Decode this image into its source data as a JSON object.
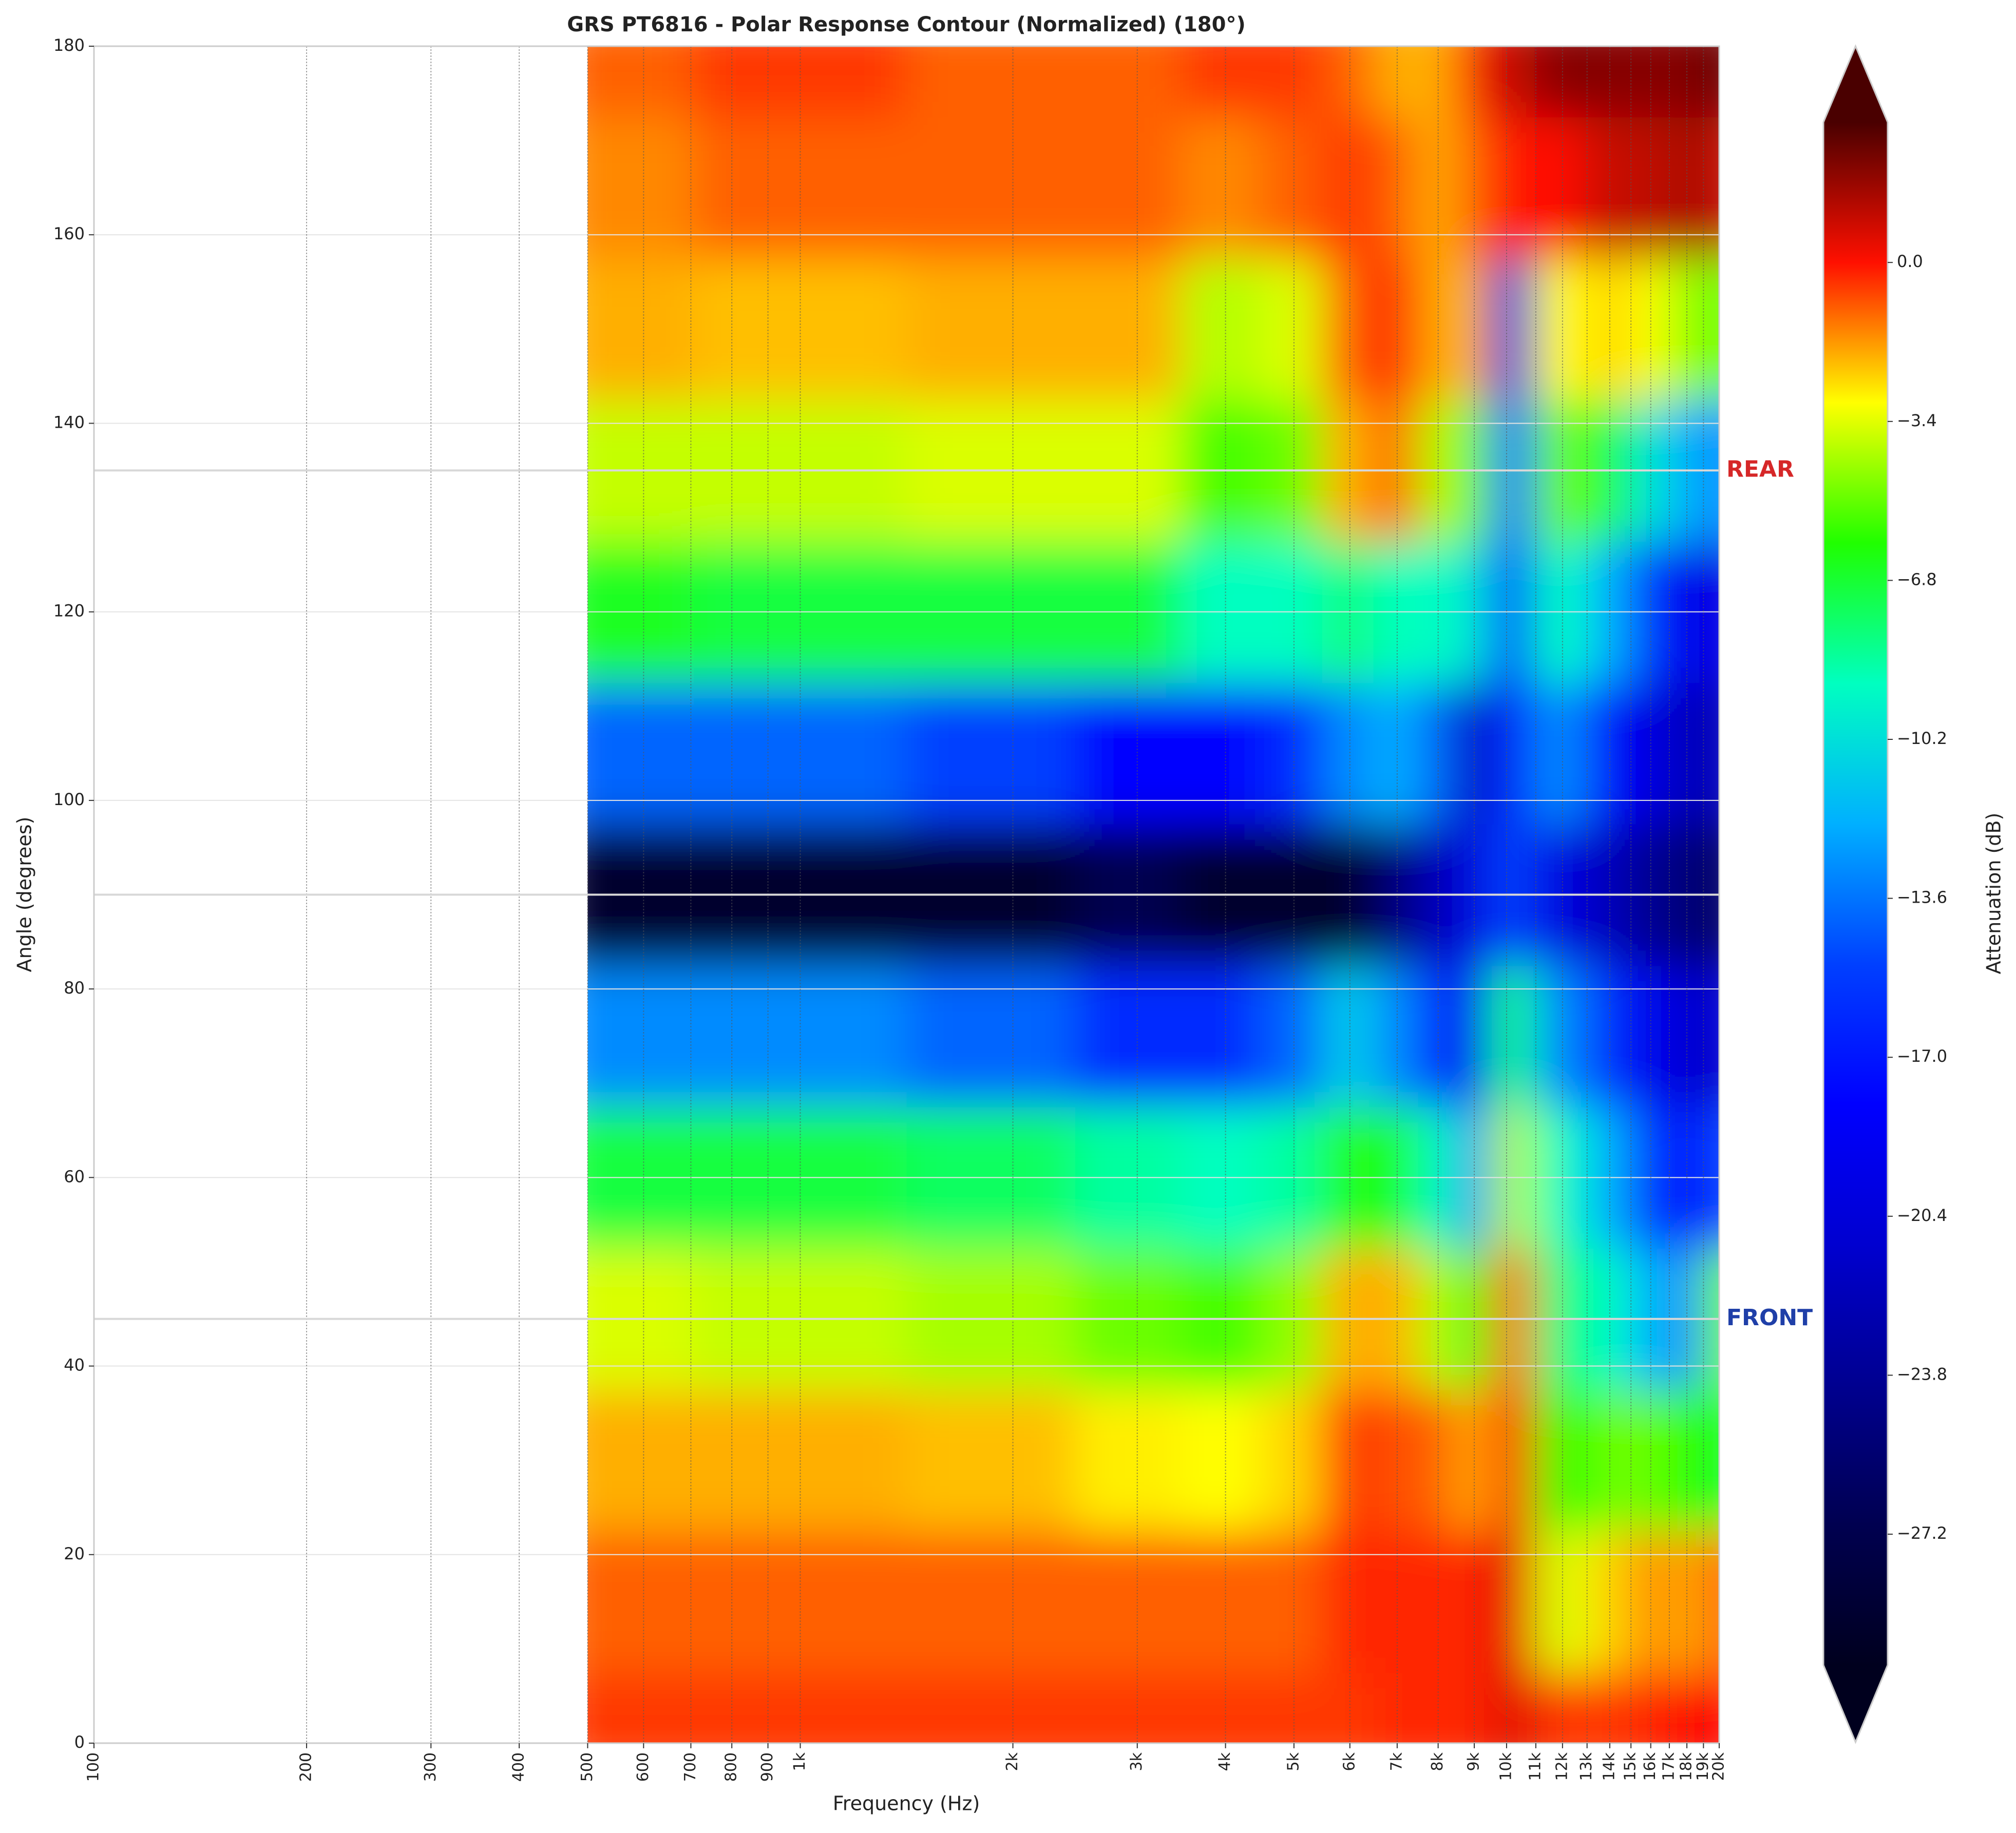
{
  "chart_data": {
    "type": "contour",
    "title": "GRS PT6816 - Polar Response Contour (Normalized) (180°)",
    "x_label": "Frequency (Hz)",
    "y_label": "Angle (degrees)",
    "colorbar_label": "Attenuation (dB)",
    "x_scale": "log",
    "grid": true,
    "x": [
      500,
      1000,
      2000,
      3000,
      4000,
      5000,
      6000,
      7000,
      8000,
      9000,
      10000,
      12000,
      14000,
      16000,
      18000,
      20000
    ],
    "y": [
      0,
      15,
      30,
      45,
      60,
      75,
      90,
      105,
      120,
      135,
      150,
      165,
      180
    ],
    "z": [
      [
        -0.5,
        -0.5,
        -0.5,
        -0.5,
        -0.5,
        -0.5,
        -0.5,
        -0.3,
        -0.3,
        -0.3,
        0.5,
        -0.5,
        -0.5,
        -0.3,
        0,
        0
      ],
      [
        -1,
        -1,
        -1,
        -1,
        -1,
        -1,
        -0.3,
        -0.3,
        -0.3,
        -0.3,
        0.5,
        -3.5,
        -2.5,
        -1.5,
        -2,
        -1
      ],
      [
        -2,
        -2,
        -2.2,
        -2.8,
        -3,
        -2.5,
        -0.5,
        -0.8,
        -1,
        -2,
        0,
        -6,
        -5,
        -5,
        -6,
        -6.5
      ],
      [
        -3.5,
        -3.8,
        -4.2,
        -5,
        -5.5,
        -4.5,
        -2,
        -2,
        -4,
        -6.5,
        -1,
        -8,
        -9,
        -12,
        -13,
        -5
      ],
      [
        -7,
        -7,
        -7.5,
        -8.5,
        -9,
        -8.5,
        -6,
        -6.5,
        -9,
        -13,
        -4,
        -9,
        -12,
        -16,
        -17,
        -15
      ],
      [
        -13,
        -13,
        -14,
        -16,
        -16,
        -14,
        -11,
        -13,
        -16,
        -19,
        -8,
        -13,
        -16,
        -19,
        -21,
        -21
      ],
      [
        -29,
        -29,
        -29,
        -27,
        -29,
        -29,
        -29,
        -25,
        -22,
        -20,
        -15,
        -20,
        -22,
        -24,
        -25,
        -26
      ],
      [
        -14,
        -14,
        -15,
        -18,
        -18,
        -16,
        -13,
        -12,
        -14,
        -22,
        -16,
        -13,
        -18,
        -20,
        -22,
        -22
      ],
      [
        -6.5,
        -7,
        -7,
        -7,
        -9,
        -9,
        -8,
        -9,
        -9,
        -10,
        -15,
        -9,
        -12,
        -16,
        -19,
        -20
      ],
      [
        -3.8,
        -3.8,
        -3.5,
        -3.5,
        -5.5,
        -5,
        -2,
        -1,
        -4,
        -5,
        -14,
        -5,
        -7,
        -10,
        -12,
        -13
      ],
      [
        -2,
        -2.2,
        -2,
        -2,
        -4,
        -3.5,
        -1,
        0,
        -2,
        -2,
        -20,
        -3,
        -2.5,
        -3,
        -4.5,
        -5
      ],
      [
        -1.5,
        -1,
        -1,
        -1,
        -1.5,
        -1,
        -0.5,
        -1,
        -2,
        -1,
        0,
        0,
        1,
        1,
        1.5,
        1
      ],
      [
        -1,
        -0.5,
        -1,
        -1,
        -0.5,
        -0.5,
        -1,
        -2,
        -2,
        0,
        1,
        2,
        2,
        2,
        2,
        2.5
      ]
    ],
    "xlim": [
      100,
      20000
    ],
    "ylim": [
      0,
      180
    ],
    "clim": [
      -30,
      3
    ],
    "colormap": [
      "#00001e",
      "#000050",
      "#000090",
      "#0000d0",
      "#0000ff",
      "#0040ff",
      "#00b0ff",
      "#00ffc0",
      "#20ff00",
      "#ffff00",
      "#ff1000",
      "#4a0000"
    ],
    "xticks": [
      100,
      200,
      300,
      400,
      500,
      600,
      700,
      800,
      900,
      {
        "value": 1000,
        "label": "1k"
      },
      {
        "value": 2000,
        "label": "2k"
      },
      {
        "value": 3000,
        "label": "3k"
      },
      {
        "value": 4000,
        "label": "4k"
      },
      {
        "value": 5000,
        "label": "5k"
      },
      {
        "value": 6000,
        "label": "6k"
      },
      {
        "value": 7000,
        "label": "7k"
      },
      {
        "value": 8000,
        "label": "8k"
      },
      {
        "value": 9000,
        "label": "9k"
      },
      {
        "value": 10000,
        "label": "10k"
      },
      {
        "value": 11000,
        "label": "11k"
      },
      {
        "value": 12000,
        "label": "12k"
      },
      {
        "value": 13000,
        "label": "13k"
      },
      {
        "value": 14000,
        "label": "14k"
      },
      {
        "value": 15000,
        "label": "15k"
      },
      {
        "value": 16000,
        "label": "16k"
      },
      {
        "value": 17000,
        "label": "17k"
      },
      {
        "value": 18000,
        "label": "18k"
      },
      {
        "value": 19000,
        "label": "19k"
      },
      {
        "value": 20000,
        "label": "20k"
      }
    ],
    "yticks": [
      0,
      20,
      40,
      60,
      80,
      100,
      120,
      140,
      160,
      180
    ],
    "cticks": [
      {
        "value": -27.2,
        "label": "−27.2"
      },
      {
        "value": -23.8,
        "label": "−23.8"
      },
      {
        "value": -20.4,
        "label": "−20.4"
      },
      {
        "value": -17.0,
        "label": "−17.0"
      },
      {
        "value": -13.6,
        "label": "−13.6"
      },
      {
        "value": -10.2,
        "label": "−10.2"
      },
      {
        "value": -6.8,
        "label": "−6.8"
      },
      {
        "value": -3.4,
        "label": "−3.4"
      },
      {
        "value": 0.0,
        "label": "0.0"
      }
    ],
    "reference_lines": [
      {
        "value": 135,
        "label": "REAR",
        "color": "#d62728"
      },
      {
        "value": 90
      },
      {
        "value": 45,
        "label": "FRONT",
        "color": "#1f3fa8"
      }
    ]
  }
}
